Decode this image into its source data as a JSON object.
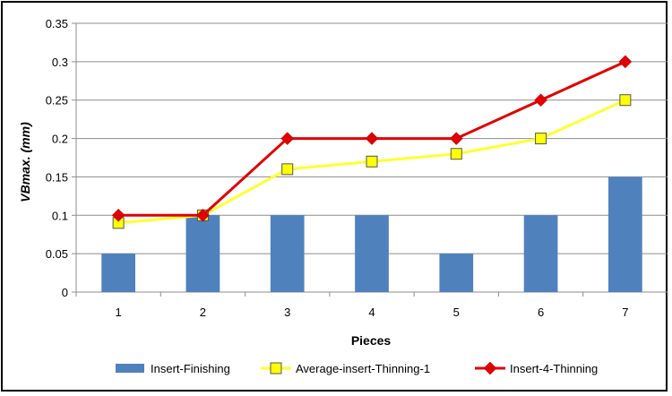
{
  "chart_data": {
    "type": "bar",
    "categories": [
      "1",
      "2",
      "3",
      "4",
      "5",
      "6",
      "7"
    ],
    "xlabel": "Pieces",
    "ylabel": "VBmax. (mm)",
    "ylim": [
      0,
      0.35
    ],
    "yticks": [
      "0",
      "0.05",
      "0.1",
      "0.15",
      "0.2",
      "0.25",
      "0.3",
      "0.35"
    ],
    "grid": true,
    "legend": "bottom",
    "series": [
      {
        "name": "Insert-Finishing",
        "kind": "bar",
        "color": "#4F81BD",
        "values": [
          0.05,
          0.1,
          0.1,
          0.1,
          0.05,
          0.1,
          0.15
        ]
      },
      {
        "name": "Average-insert-Thinning-1",
        "kind": "line",
        "marker": "square",
        "color": "#FFFF33",
        "marker_color": "#FFFF00",
        "values": [
          0.09,
          0.1,
          0.16,
          0.17,
          0.18,
          0.2,
          0.25
        ]
      },
      {
        "name": "Insert-4-Thinning",
        "kind": "line",
        "marker": "diamond",
        "color": "#E00000",
        "marker_color": "#E00000",
        "values": [
          0.1,
          0.1,
          0.2,
          0.2,
          0.2,
          0.25,
          0.3
        ]
      }
    ]
  }
}
